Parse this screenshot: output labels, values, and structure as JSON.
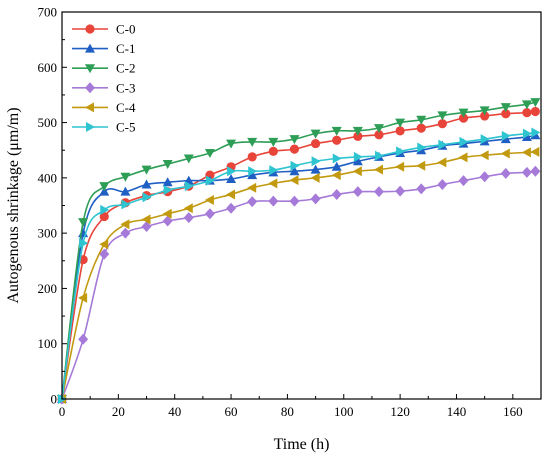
{
  "chart_data": {
    "type": "line",
    "title": "",
    "xlabel": "Time (h)",
    "ylabel": "Autogenous shrinkage (μm/m)",
    "xlim": [
      0,
      170
    ],
    "ylim": [
      0,
      700
    ],
    "xticks": [
      0,
      20,
      40,
      60,
      80,
      100,
      120,
      140,
      160
    ],
    "yticks": [
      0,
      100,
      200,
      300,
      400,
      500,
      600,
      700
    ],
    "grid": false,
    "legend_position": "top-left",
    "x": [
      0,
      7.5,
      15,
      22.5,
      30,
      37.5,
      45,
      52.5,
      60,
      67.5,
      75,
      82.5,
      90,
      97.5,
      105,
      112.5,
      120,
      127.5,
      135,
      142.5,
      150,
      157.5,
      165,
      168
    ],
    "series": [
      {
        "name": "C-0",
        "color": "#e8443a",
        "marker": "circle",
        "values": [
          0,
          252,
          330,
          355,
          368,
          375,
          385,
          405,
          420,
          438,
          448,
          452,
          462,
          468,
          475,
          478,
          485,
          490,
          498,
          508,
          512,
          516,
          518,
          520
        ]
      },
      {
        "name": "C-1",
        "color": "#1f5fc4",
        "marker": "triangle-up",
        "values": [
          0,
          300,
          375,
          375,
          388,
          392,
          395,
          395,
          398,
          405,
          410,
          412,
          415,
          420,
          430,
          438,
          445,
          450,
          458,
          462,
          466,
          470,
          474,
          477
        ]
      },
      {
        "name": "C-2",
        "color": "#2e9e56",
        "marker": "triangle-down",
        "values": [
          0,
          320,
          385,
          402,
          415,
          425,
          435,
          445,
          462,
          465,
          465,
          470,
          480,
          485,
          485,
          490,
          500,
          505,
          513,
          518,
          522,
          528,
          533,
          537
        ]
      },
      {
        "name": "C-3",
        "color": "#a67ad8",
        "marker": "diamond",
        "values": [
          0,
          108,
          262,
          300,
          312,
          322,
          328,
          335,
          345,
          357,
          358,
          358,
          362,
          370,
          375,
          375,
          376,
          380,
          388,
          395,
          402,
          408,
          410,
          412
        ]
      },
      {
        "name": "C-4",
        "color": "#c29a10",
        "marker": "triangle-left",
        "values": [
          0,
          183,
          280,
          316,
          325,
          335,
          345,
          360,
          370,
          382,
          390,
          396,
          400,
          405,
          412,
          415,
          420,
          422,
          428,
          437,
          441,
          444,
          446,
          447
        ]
      },
      {
        "name": "C-5",
        "color": "#2ec4d0",
        "marker": "triangle-right",
        "values": [
          0,
          282,
          342,
          352,
          365,
          378,
          385,
          395,
          412,
          412,
          414,
          422,
          430,
          435,
          438,
          440,
          448,
          455,
          460,
          465,
          470,
          476,
          480,
          482
        ]
      }
    ]
  }
}
